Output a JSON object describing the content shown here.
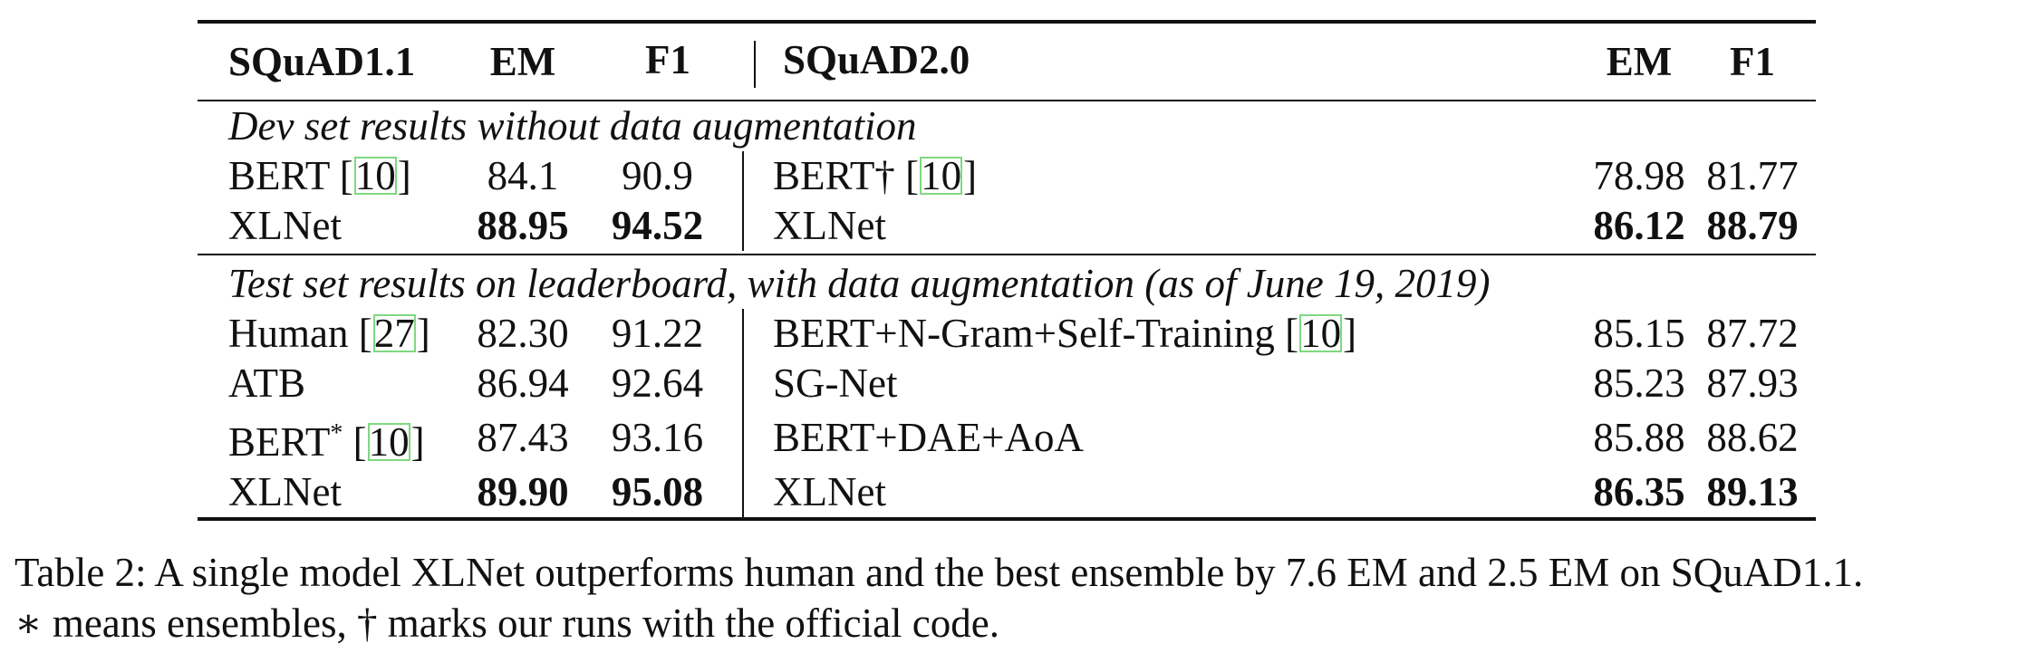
{
  "header": {
    "left_title": "SQuAD1.1",
    "col_em": "EM",
    "col_f1": "F1",
    "right_title": "SQuAD2.0"
  },
  "sections": [
    {
      "title": "Dev set results without data augmentation",
      "rows": [
        {
          "lname": "BERT ",
          "lcite": "10",
          "lsup": "",
          "lem": "84.1",
          "lf1": "90.9",
          "lbold": false,
          "rname": "BERT† ",
          "rcite": "10",
          "rem": "78.98",
          "rf1": "81.77",
          "rbold": false
        },
        {
          "lname": "XLNet",
          "lcite": "",
          "lsup": "",
          "lem": "88.95",
          "lf1": "94.52",
          "lbold": true,
          "rname": "XLNet",
          "rcite": "",
          "rem": "86.12",
          "rf1": "88.79",
          "rbold": true
        }
      ]
    },
    {
      "title": "Test set results on leaderboard, with data augmentation (as of June 19, 2019)",
      "rows": [
        {
          "lname": "Human ",
          "lcite": "27",
          "lsup": "",
          "lem": "82.30",
          "lf1": "91.22",
          "lbold": false,
          "rname": "BERT+N-Gram+Self-Training ",
          "rcite": "10",
          "rem": "85.15",
          "rf1": "87.72",
          "rbold": false
        },
        {
          "lname": "ATB",
          "lcite": "",
          "lsup": "",
          "lem": "86.94",
          "lf1": "92.64",
          "lbold": false,
          "rname": "SG-Net",
          "rcite": "",
          "rem": "85.23",
          "rf1": "87.93",
          "rbold": false
        },
        {
          "lname": "BERT",
          "lcite": "10",
          "lsup": "*",
          "lem": "87.43",
          "lf1": "93.16",
          "lbold": false,
          "rname": "BERT+DAE+AoA",
          "rcite": "",
          "rem": "85.88",
          "rf1": "88.62",
          "rbold": false
        },
        {
          "lname": "XLNet",
          "lcite": "",
          "lsup": "",
          "lem": "89.90",
          "lf1": "95.08",
          "lbold": true,
          "rname": "XLNet",
          "rcite": "",
          "rem": "86.35",
          "rf1": "89.13",
          "rbold": true
        }
      ]
    }
  ],
  "caption": {
    "line1": "Table 2:  A single model XLNet outperforms human and the best ensemble by 7.6 EM and 2.5 EM on SQuAD1.1.",
    "line2": "∗ means ensembles, † marks our runs with the official code."
  }
}
